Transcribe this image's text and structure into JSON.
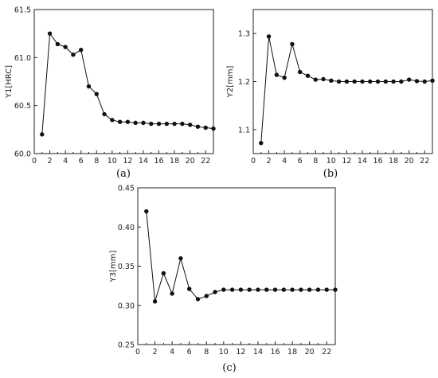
{
  "chart_data": [
    {
      "type": "line",
      "panel_label": "(a)",
      "ylabel": "Y1[HRC]",
      "xlim": [
        0,
        23
      ],
      "ylim": [
        60.0,
        61.5
      ],
      "x_ticks": [
        "0",
        "2",
        "4",
        "6",
        "8",
        "10",
        "12",
        "14",
        "16",
        "18",
        "20",
        "22"
      ],
      "y_ticks": [
        "60.0",
        "60.5",
        "61.0",
        "61.5"
      ],
      "series": [
        {
          "x": [
            1,
            2,
            3,
            4,
            5,
            6,
            7,
            8,
            9,
            10,
            11,
            12,
            13,
            14,
            15,
            16,
            17,
            18,
            19,
            20,
            21,
            22,
            23
          ],
          "values": [
            60.2,
            61.25,
            61.14,
            61.11,
            61.03,
            61.08,
            60.7,
            60.62,
            60.41,
            60.35,
            60.33,
            60.33,
            60.32,
            60.32,
            60.31,
            60.31,
            60.31,
            60.31,
            60.31,
            60.3,
            60.28,
            60.27,
            60.26
          ]
        }
      ]
    },
    {
      "type": "line",
      "panel_label": "(b)",
      "ylabel": "Y2[mm]",
      "xlim": [
        0,
        23
      ],
      "ylim": [
        1.05,
        1.35
      ],
      "x_ticks": [
        "0",
        "2",
        "4",
        "6",
        "8",
        "10",
        "12",
        "14",
        "16",
        "18",
        "20",
        "22"
      ],
      "y_ticks": [
        "1.1",
        "1.2",
        "1.3"
      ],
      "series": [
        {
          "x": [
            1,
            2,
            3,
            4,
            5,
            6,
            7,
            8,
            9,
            10,
            11,
            12,
            13,
            14,
            15,
            16,
            17,
            18,
            19,
            20,
            21,
            22,
            23
          ],
          "values": [
            1.072,
            1.294,
            1.214,
            1.208,
            1.278,
            1.22,
            1.212,
            1.204,
            1.205,
            1.202,
            1.2,
            1.2,
            1.2,
            1.2,
            1.2,
            1.2,
            1.2,
            1.2,
            1.2,
            1.204,
            1.201,
            1.2,
            1.202
          ]
        }
      ]
    },
    {
      "type": "line",
      "panel_label": "(c)",
      "ylabel": "Y3[mm]",
      "xlim": [
        0,
        23
      ],
      "ylim": [
        0.25,
        0.45
      ],
      "x_ticks": [
        "0",
        "2",
        "4",
        "6",
        "8",
        "10",
        "12",
        "14",
        "16",
        "18",
        "20",
        "22"
      ],
      "y_ticks": [
        "0.25",
        "0.30",
        "0.35",
        "0.40",
        "0.45"
      ],
      "series": [
        {
          "x": [
            1,
            2,
            3,
            4,
            5,
            6,
            7,
            8,
            9,
            10,
            11,
            12,
            13,
            14,
            15,
            16,
            17,
            18,
            19,
            20,
            21,
            22,
            23
          ],
          "values": [
            0.42,
            0.305,
            0.341,
            0.315,
            0.36,
            0.321,
            0.308,
            0.312,
            0.317,
            0.32,
            0.32,
            0.32,
            0.32,
            0.32,
            0.32,
            0.32,
            0.32,
            0.32,
            0.32,
            0.32,
            0.32,
            0.32,
            0.32
          ]
        }
      ]
    }
  ]
}
